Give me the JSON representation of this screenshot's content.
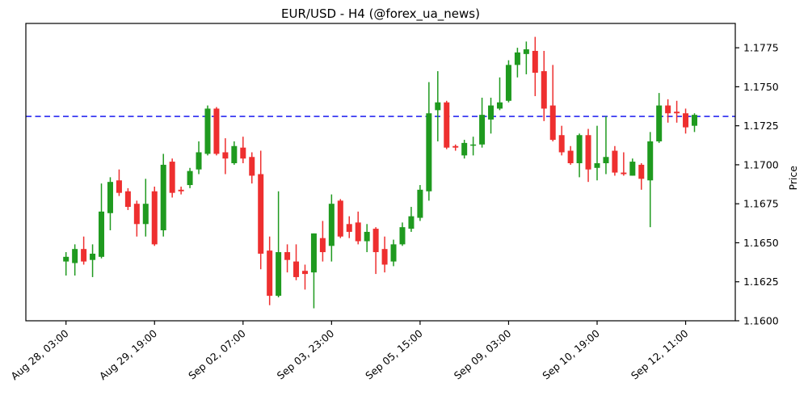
{
  "chart_data": {
    "type": "candlestick",
    "title": "EUR/USD - H4 (@forex_ua_news)",
    "ylabel": "Price",
    "ylabel_side": "right",
    "xlabel": "",
    "grid": false,
    "plot_bg": "#ffffff",
    "ylim": [
      1.16,
      1.17906
    ],
    "y_ticks": [
      1.16,
      1.1625,
      1.165,
      1.1675,
      1.17,
      1.1725,
      1.175,
      1.1775
    ],
    "y_tick_format_decimals": 4,
    "x_tick_indices": [
      0,
      10,
      20,
      30,
      40,
      50,
      60,
      70
    ],
    "x_tick_labels": [
      "Aug 28, 03:00",
      "Aug 29, 19:00",
      "Sep 02, 07:00",
      "Sep 03, 23:00",
      "Sep 05, 15:00",
      "Sep 09, 03:00",
      "Sep 10, 19:00",
      "Sep 12, 11:00"
    ],
    "x_tick_rotation_deg": -40,
    "reference_line": {
      "value": 1.1731,
      "color": "#0000ee",
      "style": "dashed",
      "width": 1.4
    },
    "colors": {
      "up": "#1f9a1f",
      "down": "#ee2f2f",
      "axis": "#000000"
    },
    "timeframe": "H4",
    "symbol": "EUR/USD",
    "ohlc": [
      [
        1.1638,
        1.1644,
        1.1629,
        1.1641
      ],
      [
        1.1637,
        1.1649,
        1.1629,
        1.1646
      ],
      [
        1.1646,
        1.1654,
        1.1636,
        1.1638
      ],
      [
        1.1639,
        1.1649,
        1.1628,
        1.1643
      ],
      [
        1.1641,
        1.1688,
        1.164,
        1.167
      ],
      [
        1.1669,
        1.1692,
        1.1658,
        1.1689
      ],
      [
        1.169,
        1.1697,
        1.168,
        1.1682
      ],
      [
        1.1683,
        1.1685,
        1.1671,
        1.1673
      ],
      [
        1.1675,
        1.1677,
        1.1654,
        1.1662
      ],
      [
        1.1662,
        1.1691,
        1.1654,
        1.1675
      ],
      [
        1.1683,
        1.1686,
        1.1648,
        1.1649
      ],
      [
        1.1658,
        1.1707,
        1.1654,
        1.17
      ],
      [
        1.1702,
        1.1704,
        1.1679,
        1.1682
      ],
      [
        1.1684,
        1.1686,
        1.1681,
        1.1683
      ],
      [
        1.1687,
        1.1698,
        1.1685,
        1.1696
      ],
      [
        1.1697,
        1.1715,
        1.1694,
        1.1708
      ],
      [
        1.1707,
        1.1738,
        1.1706,
        1.1736
      ],
      [
        1.1736,
        1.1737,
        1.1706,
        1.1707
      ],
      [
        1.1708,
        1.1717,
        1.1694,
        1.1704
      ],
      [
        1.1701,
        1.1715,
        1.17,
        1.1712
      ],
      [
        1.1711,
        1.1718,
        1.1701,
        1.1704
      ],
      [
        1.1705,
        1.1708,
        1.1688,
        1.1693
      ],
      [
        1.1694,
        1.1709,
        1.1633,
        1.1643
      ],
      [
        1.1645,
        1.1654,
        1.161,
        1.1616
      ],
      [
        1.1616,
        1.1683,
        1.1615,
        1.1644
      ],
      [
        1.1644,
        1.1649,
        1.1631,
        1.1639
      ],
      [
        1.1638,
        1.1649,
        1.1626,
        1.1628
      ],
      [
        1.1632,
        1.1636,
        1.162,
        1.163
      ],
      [
        1.1631,
        1.1656,
        1.1608,
        1.1656
      ],
      [
        1.1653,
        1.1664,
        1.1638,
        1.1644
      ],
      [
        1.1648,
        1.1681,
        1.1638,
        1.1675
      ],
      [
        1.1677,
        1.1678,
        1.1653,
        1.1654
      ],
      [
        1.1662,
        1.1667,
        1.1653,
        1.1657
      ],
      [
        1.1663,
        1.167,
        1.1649,
        1.1651
      ],
      [
        1.1651,
        1.1662,
        1.1644,
        1.1657
      ],
      [
        1.1659,
        1.166,
        1.163,
        1.1644
      ],
      [
        1.1646,
        1.1654,
        1.1631,
        1.1636
      ],
      [
        1.1638,
        1.1652,
        1.1635,
        1.1649
      ],
      [
        1.1649,
        1.1663,
        1.1648,
        1.166
      ],
      [
        1.1659,
        1.1673,
        1.1657,
        1.1667
      ],
      [
        1.1666,
        1.1687,
        1.1664,
        1.1684
      ],
      [
        1.1683,
        1.1753,
        1.1677,
        1.1733
      ],
      [
        1.1735,
        1.176,
        1.1715,
        1.174
      ],
      [
        1.174,
        1.1741,
        1.171,
        1.1711
      ],
      [
        1.1712,
        1.1713,
        1.1709,
        1.1711
      ],
      [
        1.1706,
        1.1716,
        1.1704,
        1.1714
      ],
      [
        1.1713,
        1.1718,
        1.1706,
        1.1713
      ],
      [
        1.1713,
        1.1743,
        1.1711,
        1.1732
      ],
      [
        1.1729,
        1.1743,
        1.172,
        1.1738
      ],
      [
        1.1736,
        1.1756,
        1.1735,
        1.174
      ],
      [
        1.1741,
        1.1767,
        1.174,
        1.1764
      ],
      [
        1.1764,
        1.1775,
        1.1756,
        1.1772
      ],
      [
        1.1771,
        1.1779,
        1.1758,
        1.1774
      ],
      [
        1.1773,
        1.1782,
        1.1744,
        1.1759
      ],
      [
        1.176,
        1.1773,
        1.1728,
        1.1736
      ],
      [
        1.1738,
        1.1764,
        1.1715,
        1.1716
      ],
      [
        1.1719,
        1.1725,
        1.1706,
        1.1708
      ],
      [
        1.1709,
        1.1712,
        1.17,
        1.1701
      ],
      [
        1.1701,
        1.172,
        1.1692,
        1.1719
      ],
      [
        1.1719,
        1.1723,
        1.1689,
        1.1697
      ],
      [
        1.1698,
        1.1725,
        1.169,
        1.1701
      ],
      [
        1.1701,
        1.1731,
        1.1694,
        1.1705
      ],
      [
        1.1709,
        1.1712,
        1.1693,
        1.1695
      ],
      [
        1.1695,
        1.1708,
        1.1693,
        1.1694
      ],
      [
        1.1693,
        1.1704,
        1.1693,
        1.1702
      ],
      [
        1.17,
        1.1701,
        1.1684,
        1.1691
      ],
      [
        1.169,
        1.1721,
        1.166,
        1.1715
      ],
      [
        1.1715,
        1.1746,
        1.1714,
        1.1738
      ],
      [
        1.1738,
        1.1742,
        1.1727,
        1.1733
      ],
      [
        1.1734,
        1.1741,
        1.1727,
        1.1733
      ],
      [
        1.1733,
        1.1736,
        1.172,
        1.1724
      ],
      [
        1.1725,
        1.1733,
        1.1721,
        1.1732
      ]
    ]
  }
}
